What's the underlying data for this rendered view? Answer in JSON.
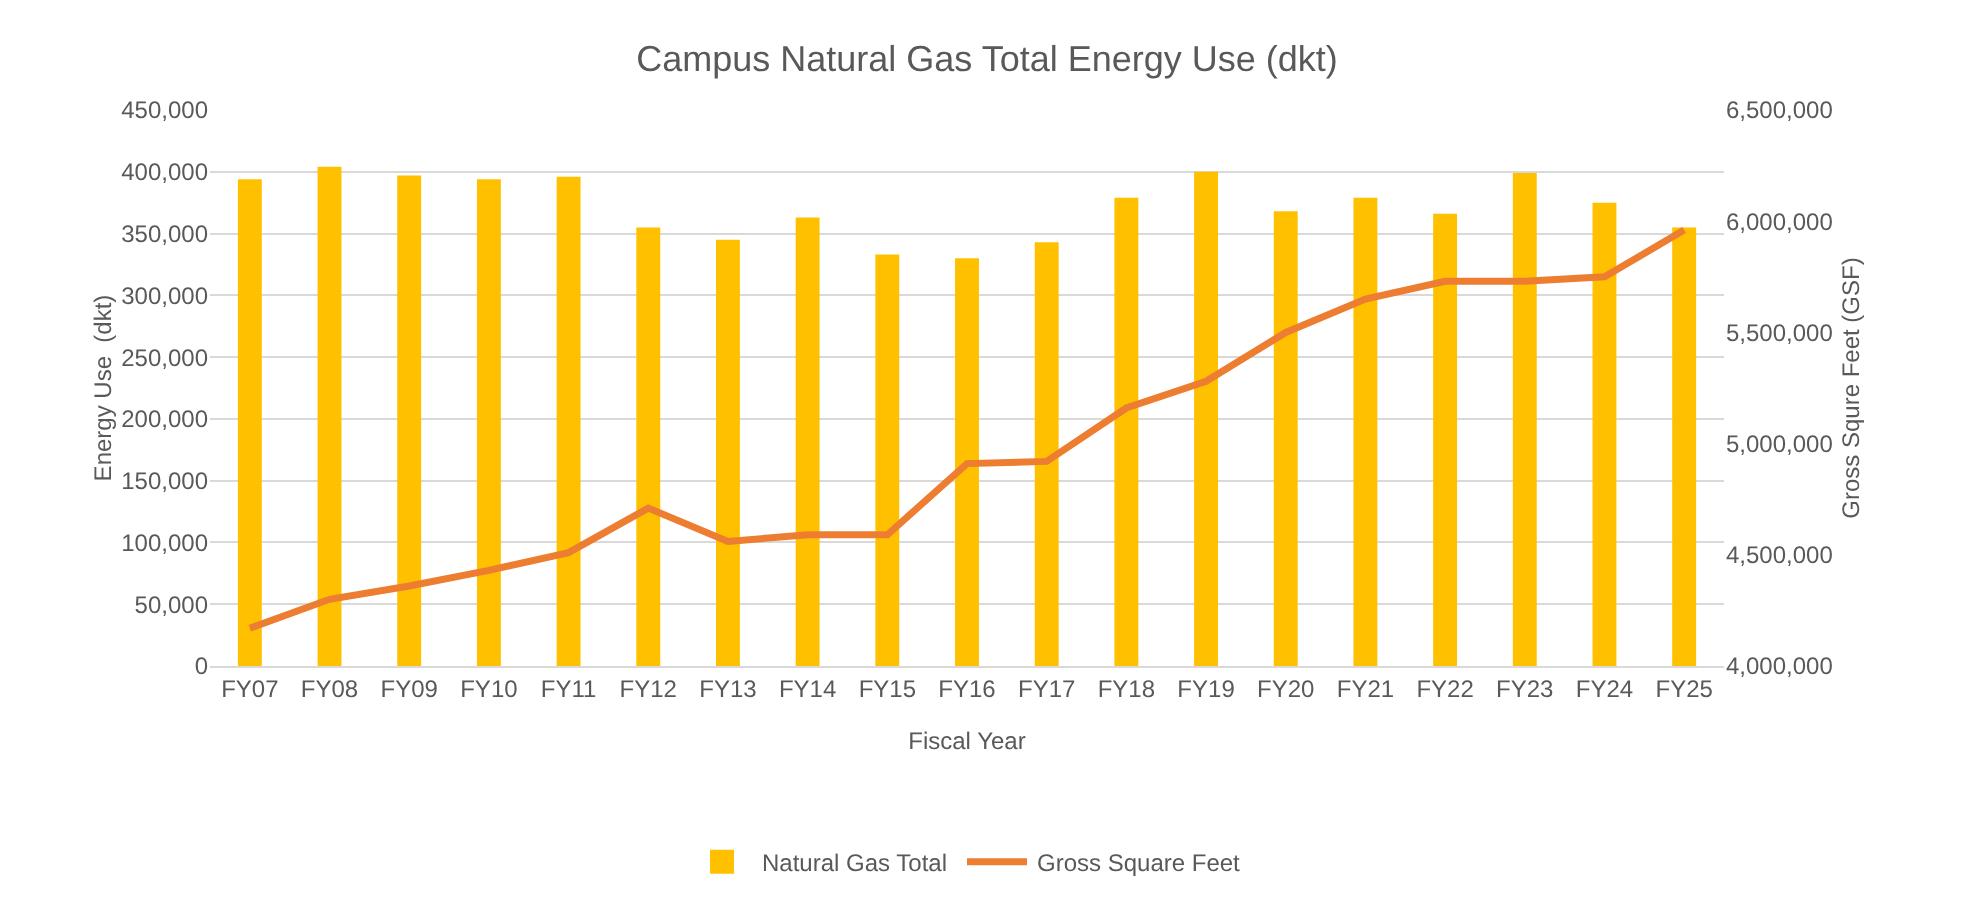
{
  "chart_data": {
    "type": "bar",
    "title": "Campus Natural Gas Total Energy Use (dkt)",
    "xlabel": "Fiscal Year",
    "ylabel": "Energy Use  (dkt)",
    "y2label": "Gross Squre Feet (GSF)",
    "categories": [
      "FY07",
      "FY08",
      "FY09",
      "FY10",
      "FY11",
      "FY12",
      "FY13",
      "FY14",
      "FY15",
      "FY16",
      "FY17",
      "FY18",
      "FY19",
      "FY20",
      "FY21",
      "FY22",
      "FY23",
      "FY24",
      "FY25"
    ],
    "series": [
      {
        "name": "Natural Gas Total",
        "color": "#ffc000",
        "values": [
          394000,
          404000,
          397000,
          394000,
          396000,
          355000,
          345000,
          363000,
          333000,
          330000,
          343000,
          379000,
          400000,
          368000,
          379000,
          366000,
          399000,
          375000,
          355000
        ]
      },
      {
        "name": "Gross Square Feet",
        "type": "line",
        "axis": "y2",
        "color": "#ed7d31",
        "values": [
          4170000,
          4300000,
          4360000,
          4430000,
          4510000,
          4710000,
          4560000,
          4590000,
          4590000,
          4910000,
          4920000,
          5160000,
          5280000,
          5500000,
          5650000,
          5730000,
          5730000,
          5750000,
          5960000
        ]
      }
    ],
    "ylim": [
      0,
      450000
    ],
    "yticks": [
      {
        "value": 0,
        "label": "0"
      },
      {
        "value": 50000,
        "label": "50,000"
      },
      {
        "value": 100000,
        "label": "100,000"
      },
      {
        "value": 150000,
        "label": "150,000"
      },
      {
        "value": 200000,
        "label": "200,000"
      },
      {
        "value": 250000,
        "label": "250,000"
      },
      {
        "value": 300000,
        "label": "300,000"
      },
      {
        "value": 350000,
        "label": "350,000"
      },
      {
        "value": 400000,
        "label": "400,000"
      },
      {
        "value": 450000,
        "label": "450,000"
      }
    ],
    "y2lim": [
      4000000,
      6500000
    ],
    "y2ticks": [
      {
        "value": 4000000,
        "label": "4,000,000"
      },
      {
        "value": 4500000,
        "label": "4,500,000"
      },
      {
        "value": 5000000,
        "label": "5,000,000"
      },
      {
        "value": 5500000,
        "label": "5,500,000"
      },
      {
        "value": 6000000,
        "label": "6,000,000"
      },
      {
        "value": 6500000,
        "label": "6,500,000"
      }
    ],
    "grid": "y",
    "legend": "bottom",
    "marker": "none",
    "line_style": "solid"
  }
}
